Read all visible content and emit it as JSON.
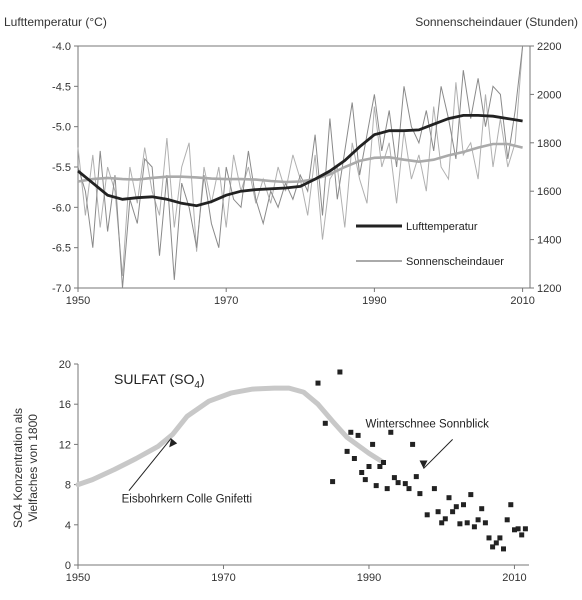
{
  "chart_data": [
    {
      "type": "line",
      "title": "",
      "ylabel_left": "Lufttemperatur (°C)",
      "ylabel_right": "Sonnenscheindauer (Stunden)",
      "xlim": [
        1950,
        2011
      ],
      "ylim_left": [
        -7.0,
        -4.0
      ],
      "ylim_right": [
        1200,
        2200
      ],
      "x_ticks": [
        "1950",
        "1970",
        "1990",
        "2010"
      ],
      "y_ticks_left": [
        "-4.0",
        "-4.5",
        "-5.0",
        "-5.5",
        "-6.0",
        "-6.5",
        "-7.0"
      ],
      "y_ticks_right": [
        "2200",
        "2000",
        "1800",
        "1600",
        "1400",
        "1200"
      ],
      "legend_position": "lower-right",
      "grid": false,
      "series": [
        {
          "name": "Lufttemperatur",
          "axis": "left",
          "color": "#222222",
          "smoothed_x": [
            1950,
            1952,
            1954,
            1956,
            1958,
            1960,
            1962,
            1964,
            1966,
            1968,
            1970,
            1972,
            1974,
            1976,
            1978,
            1980,
            1982,
            1984,
            1986,
            1988,
            1990,
            1992,
            1994,
            1996,
            1998,
            2000,
            2002,
            2004,
            2006,
            2008,
            2010
          ],
          "smoothed_y": [
            -5.55,
            -5.7,
            -5.85,
            -5.9,
            -5.88,
            -5.87,
            -5.9,
            -5.95,
            -5.98,
            -5.93,
            -5.85,
            -5.8,
            -5.78,
            -5.77,
            -5.76,
            -5.74,
            -5.65,
            -5.55,
            -5.42,
            -5.25,
            -5.1,
            -5.05,
            -5.05,
            -5.04,
            -4.97,
            -4.9,
            -4.86,
            -4.86,
            -4.87,
            -4.9,
            -4.93
          ],
          "annual_x": [
            1950,
            1951,
            1952,
            1953,
            1954,
            1955,
            1956,
            1957,
            1958,
            1959,
            1960,
            1961,
            1962,
            1963,
            1964,
            1965,
            1966,
            1967,
            1968,
            1969,
            1970,
            1971,
            1972,
            1973,
            1974,
            1975,
            1976,
            1977,
            1978,
            1979,
            1980,
            1981,
            1982,
            1983,
            1984,
            1985,
            1986,
            1987,
            1988,
            1989,
            1990,
            1991,
            1992,
            1993,
            1994,
            1995,
            1996,
            1997,
            1998,
            1999,
            2000,
            2001,
            2002,
            2003,
            2004,
            2005,
            2006,
            2007,
            2008,
            2009,
            2010
          ],
          "annual_y": [
            -5.5,
            -5.8,
            -6.5,
            -5.3,
            -6.3,
            -5.6,
            -7.0,
            -5.9,
            -6.2,
            -5.4,
            -5.5,
            -6.6,
            -5.6,
            -6.9,
            -5.7,
            -6.0,
            -6.5,
            -5.6,
            -6.2,
            -6.5,
            -5.5,
            -5.9,
            -6.0,
            -5.3,
            -5.9,
            -6.2,
            -5.8,
            -6.0,
            -5.7,
            -5.9,
            -5.6,
            -5.8,
            -5.1,
            -6.1,
            -4.9,
            -5.9,
            -5.3,
            -4.7,
            -5.6,
            -5.1,
            -4.6,
            -5.3,
            -4.8,
            -5.5,
            -4.5,
            -5.0,
            -5.2,
            -4.8,
            -5.3,
            -4.5,
            -4.9,
            -5.4,
            -4.3,
            -4.9,
            -4.4,
            -5.0,
            -4.5,
            -4.6,
            -5.4,
            -4.8,
            -4.0
          ]
        },
        {
          "name": "Sonnenscheindauer",
          "axis": "right",
          "color": "#aaaaaa",
          "smoothed_x": [
            1950,
            1952,
            1954,
            1956,
            1958,
            1960,
            1962,
            1964,
            1966,
            1968,
            1970,
            1972,
            1974,
            1976,
            1978,
            1980,
            1982,
            1984,
            1986,
            1988,
            1990,
            1992,
            1994,
            1996,
            1998,
            2000,
            2002,
            2004,
            2006,
            2008,
            2010
          ],
          "smoothed_y": [
            1640,
            1650,
            1655,
            1650,
            1648,
            1655,
            1660,
            1660,
            1657,
            1652,
            1650,
            1650,
            1648,
            1642,
            1638,
            1640,
            1650,
            1670,
            1700,
            1725,
            1738,
            1740,
            1730,
            1722,
            1730,
            1748,
            1762,
            1780,
            1795,
            1795,
            1780
          ],
          "annual_x": [
            1950,
            1951,
            1952,
            1953,
            1954,
            1955,
            1956,
            1957,
            1958,
            1959,
            1960,
            1961,
            1962,
            1963,
            1964,
            1965,
            1966,
            1967,
            1968,
            1969,
            1970,
            1971,
            1972,
            1973,
            1974,
            1975,
            1976,
            1977,
            1978,
            1979,
            1980,
            1981,
            1982,
            1983,
            1984,
            1985,
            1986,
            1987,
            1988,
            1989,
            1990,
            1991,
            1992,
            1993,
            1994,
            1995,
            1996,
            1997,
            1998,
            1999,
            2000,
            2001,
            2002,
            2003,
            2004,
            2005,
            2006,
            2007,
            2008,
            2009,
            2010
          ],
          "annual_y": [
            1780,
            1500,
            1750,
            1450,
            1700,
            1600,
            1250,
            1700,
            1550,
            1780,
            1600,
            1500,
            1820,
            1450,
            1700,
            1800,
            1350,
            1700,
            1550,
            1700,
            1450,
            1750,
            1600,
            1700,
            1550,
            1650,
            1550,
            1700,
            1600,
            1750,
            1650,
            1500,
            1750,
            1400,
            1650,
            1700,
            1450,
            1800,
            1650,
            1550,
            1950,
            1700,
            1800,
            1550,
            1850,
            1650,
            1750,
            1600,
            1950,
            1700,
            1650,
            2050,
            1750,
            1800,
            1650,
            2000,
            1700,
            1900,
            1700,
            1800,
            2200
          ]
        }
      ]
    },
    {
      "type": "scatter",
      "title": "SULFAT (SO",
      "title_subscript": "4",
      "title_suffix": ")",
      "ylabel_line1": "SO4 Konzentration als",
      "ylabel_line2": "Vielfaches von 1800",
      "xlim": [
        1950,
        2012
      ],
      "ylim": [
        0,
        20
      ],
      "x_ticks": [
        "1950",
        "1970",
        "1990",
        "2010"
      ],
      "y_ticks": [
        "0",
        "4",
        "8",
        "12",
        "16",
        "20"
      ],
      "grid": false,
      "annotations": [
        {
          "text": "Winterschnee Sonnblick",
          "target": [
            1997.5,
            9.0
          ],
          "text_at": [
            1998,
            12.5
          ]
        },
        {
          "text": "Eisbohrkern Colle Gnifetti",
          "target": [
            1963.5,
            13.4
          ],
          "text_at": [
            1956,
            6.0
          ]
        }
      ],
      "series": [
        {
          "name": "Eisbohrkern Colle Gnifetti",
          "kind": "line",
          "color": "#c8c8c8",
          "x": [
            1950,
            1952,
            1955,
            1958,
            1961,
            1963,
            1965,
            1968,
            1971,
            1974,
            1977,
            1979,
            1981,
            1983,
            1985,
            1987,
            1990,
            1992
          ],
          "y": [
            8.0,
            8.5,
            9.5,
            10.6,
            11.8,
            13.0,
            14.8,
            16.3,
            17.1,
            17.5,
            17.6,
            17.6,
            17.2,
            16.0,
            14.3,
            12.7,
            11.1,
            10.2
          ]
        },
        {
          "name": "Winterschnee Sonnblick",
          "kind": "scatter",
          "marker": "square",
          "color": "#222222",
          "x": [
            1983,
            1984,
            1985,
            1986,
            1987,
            1987.5,
            1988,
            1988.5,
            1989,
            1989.5,
            1990,
            1990.5,
            1991,
            1991.5,
            1992,
            1992.5,
            1993,
            1993.5,
            1994,
            1995,
            1995.5,
            1996,
            1996.5,
            1997,
            1998,
            1999,
            1999.5,
            2000,
            2000.5,
            2001,
            2001.5,
            2002,
            2002.5,
            2003,
            2003.5,
            2004,
            2004.5,
            2005,
            2005.5,
            2006,
            2006.5,
            2007,
            2007.5,
            2008,
            2008.5,
            2009,
            2009.5,
            2010,
            2010.5,
            2011,
            2011.5
          ],
          "y": [
            18.1,
            14.1,
            8.3,
            19.2,
            11.3,
            13.2,
            10.6,
            12.9,
            9.2,
            8.5,
            9.8,
            12.0,
            7.9,
            9.8,
            10.2,
            7.6,
            13.2,
            8.7,
            8.2,
            8.1,
            7.6,
            12.0,
            8.8,
            7.1,
            5.0,
            7.6,
            5.3,
            4.2,
            4.6,
            6.7,
            5.3,
            5.8,
            4.1,
            6.0,
            4.2,
            7.0,
            3.8,
            4.5,
            5.6,
            4.2,
            2.7,
            1.8,
            2.2,
            2.7,
            1.6,
            4.5,
            6.0,
            3.5,
            3.6,
            3.0,
            3.6
          ]
        }
      ]
    }
  ]
}
